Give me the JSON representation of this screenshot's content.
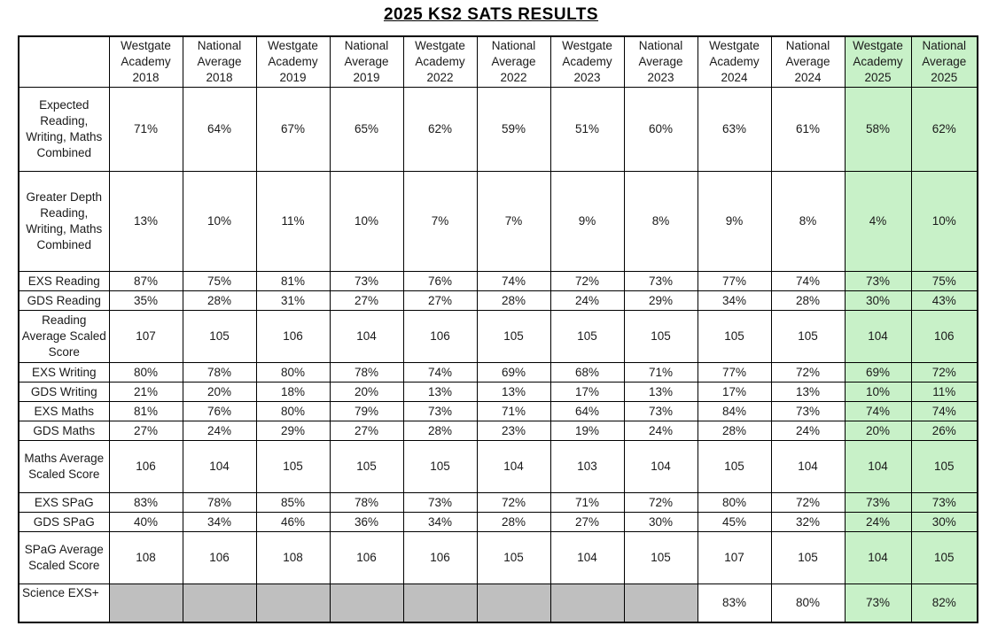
{
  "title": "2025 KS2 SATS RESULTS",
  "colors": {
    "highlight_green": "#c8f1c8",
    "empty_gray": "#bfbfbf",
    "border": "#000000",
    "text": "#1a1a1a"
  },
  "table": {
    "corner_label": "",
    "columns": [
      {
        "label": "Westgate Academy 2018",
        "highlight": false
      },
      {
        "label": "National Average 2018",
        "highlight": false
      },
      {
        "label": "Westgate Academy 2019",
        "highlight": false
      },
      {
        "label": "National Average 2019",
        "highlight": false
      },
      {
        "label": "Westgate Academy 2022",
        "highlight": false
      },
      {
        "label": "National Average 2022",
        "highlight": false
      },
      {
        "label": "Westgate Academy 2023",
        "highlight": false
      },
      {
        "label": "National Average 2023",
        "highlight": false
      },
      {
        "label": "Westgate Academy 2024",
        "highlight": false
      },
      {
        "label": "National Average 2024",
        "highlight": false
      },
      {
        "label": "Westgate Academy 2025",
        "highlight": true
      },
      {
        "label": "National Average 2025",
        "highlight": true
      }
    ],
    "rows": [
      {
        "label": "Expected Reading, Writing, Maths Combined",
        "size": "tall1",
        "values": [
          "71%",
          "64%",
          "67%",
          "65%",
          "62%",
          "59%",
          "51%",
          "60%",
          "63%",
          "61%",
          "58%",
          "62%"
        ]
      },
      {
        "label": "Greater Depth Reading, Writing, Maths Combined",
        "size": "tall2",
        "values": [
          "13%",
          "10%",
          "11%",
          "10%",
          "7%",
          "7%",
          "9%",
          "8%",
          "9%",
          "8%",
          "4%",
          "10%"
        ]
      },
      {
        "label": "EXS Reading",
        "size": "slim",
        "values": [
          "87%",
          "75%",
          "81%",
          "73%",
          "76%",
          "74%",
          "72%",
          "73%",
          "77%",
          "74%",
          "73%",
          "75%"
        ]
      },
      {
        "label": "GDS Reading",
        "size": "slim",
        "values": [
          "35%",
          "28%",
          "31%",
          "27%",
          "27%",
          "28%",
          "24%",
          "29%",
          "34%",
          "28%",
          "30%",
          "43%"
        ]
      },
      {
        "label": "Reading Average Scaled Score",
        "size": "mid",
        "values": [
          "107",
          "105",
          "106",
          "104",
          "106",
          "105",
          "105",
          "105",
          "105",
          "105",
          "104",
          "106"
        ]
      },
      {
        "label": "EXS Writing",
        "size": "slim",
        "values": [
          "80%",
          "78%",
          "80%",
          "78%",
          "74%",
          "69%",
          "68%",
          "71%",
          "77%",
          "72%",
          "69%",
          "72%"
        ]
      },
      {
        "label": "GDS Writing",
        "size": "slim",
        "values": [
          "21%",
          "20%",
          "18%",
          "20%",
          "13%",
          "13%",
          "17%",
          "13%",
          "17%",
          "13%",
          "10%",
          "11%"
        ]
      },
      {
        "label": "EXS Maths",
        "size": "slim",
        "values": [
          "81%",
          "76%",
          "80%",
          "79%",
          "73%",
          "71%",
          "64%",
          "73%",
          "84%",
          "73%",
          "74%",
          "74%"
        ]
      },
      {
        "label": "GDS Maths",
        "size": "slim",
        "values": [
          "27%",
          "24%",
          "29%",
          "27%",
          "28%",
          "23%",
          "19%",
          "24%",
          "28%",
          "24%",
          "20%",
          "26%"
        ]
      },
      {
        "label": "Maths Average Scaled Score",
        "size": "mid",
        "values": [
          "106",
          "104",
          "105",
          "105",
          "105",
          "104",
          "103",
          "104",
          "105",
          "104",
          "104",
          "105"
        ]
      },
      {
        "label": "EXS SPaG",
        "size": "slim",
        "values": [
          "83%",
          "78%",
          "85%",
          "78%",
          "73%",
          "72%",
          "71%",
          "72%",
          "80%",
          "72%",
          "73%",
          "73%"
        ]
      },
      {
        "label": "GDS SPaG",
        "size": "slim",
        "values": [
          "40%",
          "34%",
          "46%",
          "36%",
          "34%",
          "28%",
          "27%",
          "30%",
          "45%",
          "32%",
          "24%",
          "30%"
        ]
      },
      {
        "label": "SPaG Average Scaled Score",
        "size": "mid",
        "values": [
          "108",
          "106",
          "108",
          "106",
          "106",
          "105",
          "104",
          "105",
          "107",
          "105",
          "104",
          "105"
        ]
      },
      {
        "label": "Science EXS+",
        "size": "science",
        "values": [
          null,
          null,
          null,
          null,
          null,
          null,
          null,
          null,
          "83%",
          "80%",
          "73%",
          "82%"
        ]
      }
    ]
  }
}
